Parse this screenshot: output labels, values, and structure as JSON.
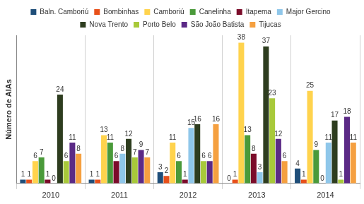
{
  "chart_data": {
    "type": "bar",
    "y_label": "Número de AIAs",
    "categories": [
      "2010",
      "2011",
      "2012",
      "2013",
      "2014"
    ],
    "series": [
      {
        "name": "Baln. Camboriú",
        "color": "#1f4e79",
        "values": [
          1,
          1,
          3,
          0,
          4
        ]
      },
      {
        "name": "Bombinhas",
        "color": "#e8501a",
        "values": [
          1,
          1,
          2,
          1,
          1
        ]
      },
      {
        "name": "Camboriú",
        "color": "#ffd34d",
        "values": [
          6,
          13,
          11,
          38,
          25
        ]
      },
      {
        "name": "Canelinha",
        "color": "#4a9a3a",
        "values": [
          7,
          11,
          6,
          13,
          9
        ]
      },
      {
        "name": "Itapema",
        "color": "#7b0c2a",
        "values": [
          1,
          6,
          1,
          8,
          0
        ]
      },
      {
        "name": "Major Gercino",
        "color": "#8fc7ea",
        "values": [
          0,
          8,
          15,
          3,
          11
        ]
      },
      {
        "name": "Nova Trento",
        "color": "#2e3d1f",
        "values": [
          24,
          12,
          16,
          37,
          17
        ]
      },
      {
        "name": "Porto Belo",
        "color": "#a8c93a",
        "values": [
          6,
          7,
          6,
          23,
          1
        ]
      },
      {
        "name": "São João Batista",
        "color": "#5b2a86",
        "values": [
          11,
          9,
          6,
          12,
          18
        ]
      },
      {
        "name": "Tijucas",
        "color": "#f5a040",
        "values": [
          8,
          7,
          16,
          6,
          11
        ]
      }
    ],
    "ylim": [
      0,
      40
    ],
    "grid": false,
    "legend": "top",
    "data_labels": true,
    "tick_labels": "x"
  }
}
